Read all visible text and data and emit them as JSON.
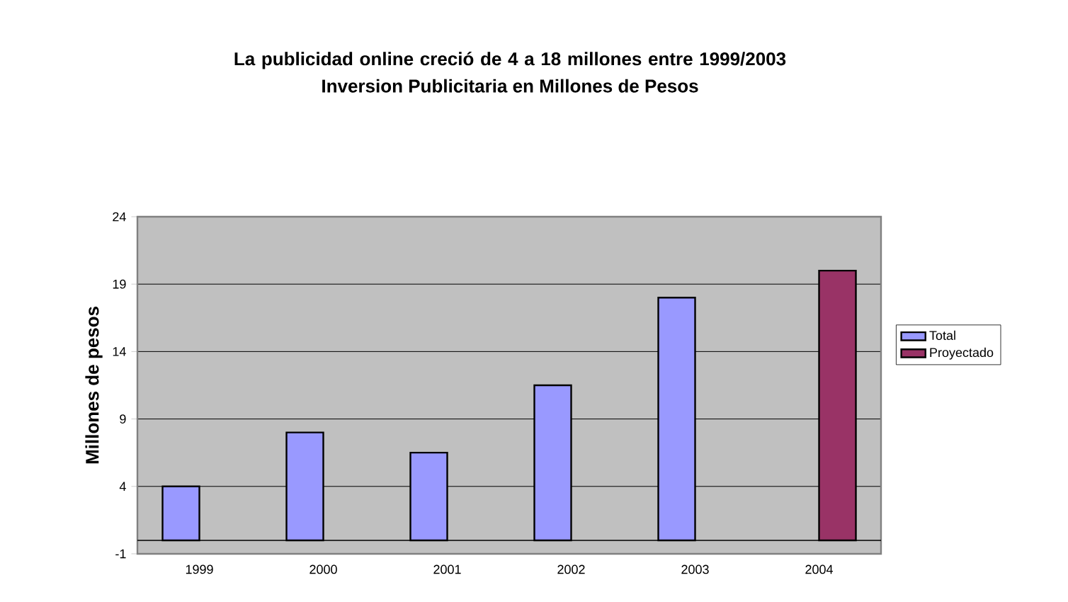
{
  "chart_data": {
    "type": "bar",
    "title": "La publicidad online creció de 4 a 18 millones entre 1999/2003",
    "subtitle": "Inversion Publicitaria en Millones de Pesos",
    "ylabel": "Millones de pesos",
    "categories": [
      "1999",
      "2000",
      "2001",
      "2002",
      "2003",
      "2004"
    ],
    "series": [
      {
        "name": "Total",
        "color": "#9999ff",
        "values": [
          4,
          8,
          6.5,
          11.5,
          18,
          null
        ]
      },
      {
        "name": "Proyectado",
        "color": "#993366",
        "values": [
          null,
          null,
          null,
          null,
          null,
          20
        ]
      }
    ],
    "ylim": [
      -1,
      24
    ],
    "yticks": [
      -1,
      4,
      9,
      14,
      19,
      24
    ],
    "grid": "y",
    "legend": "right"
  }
}
